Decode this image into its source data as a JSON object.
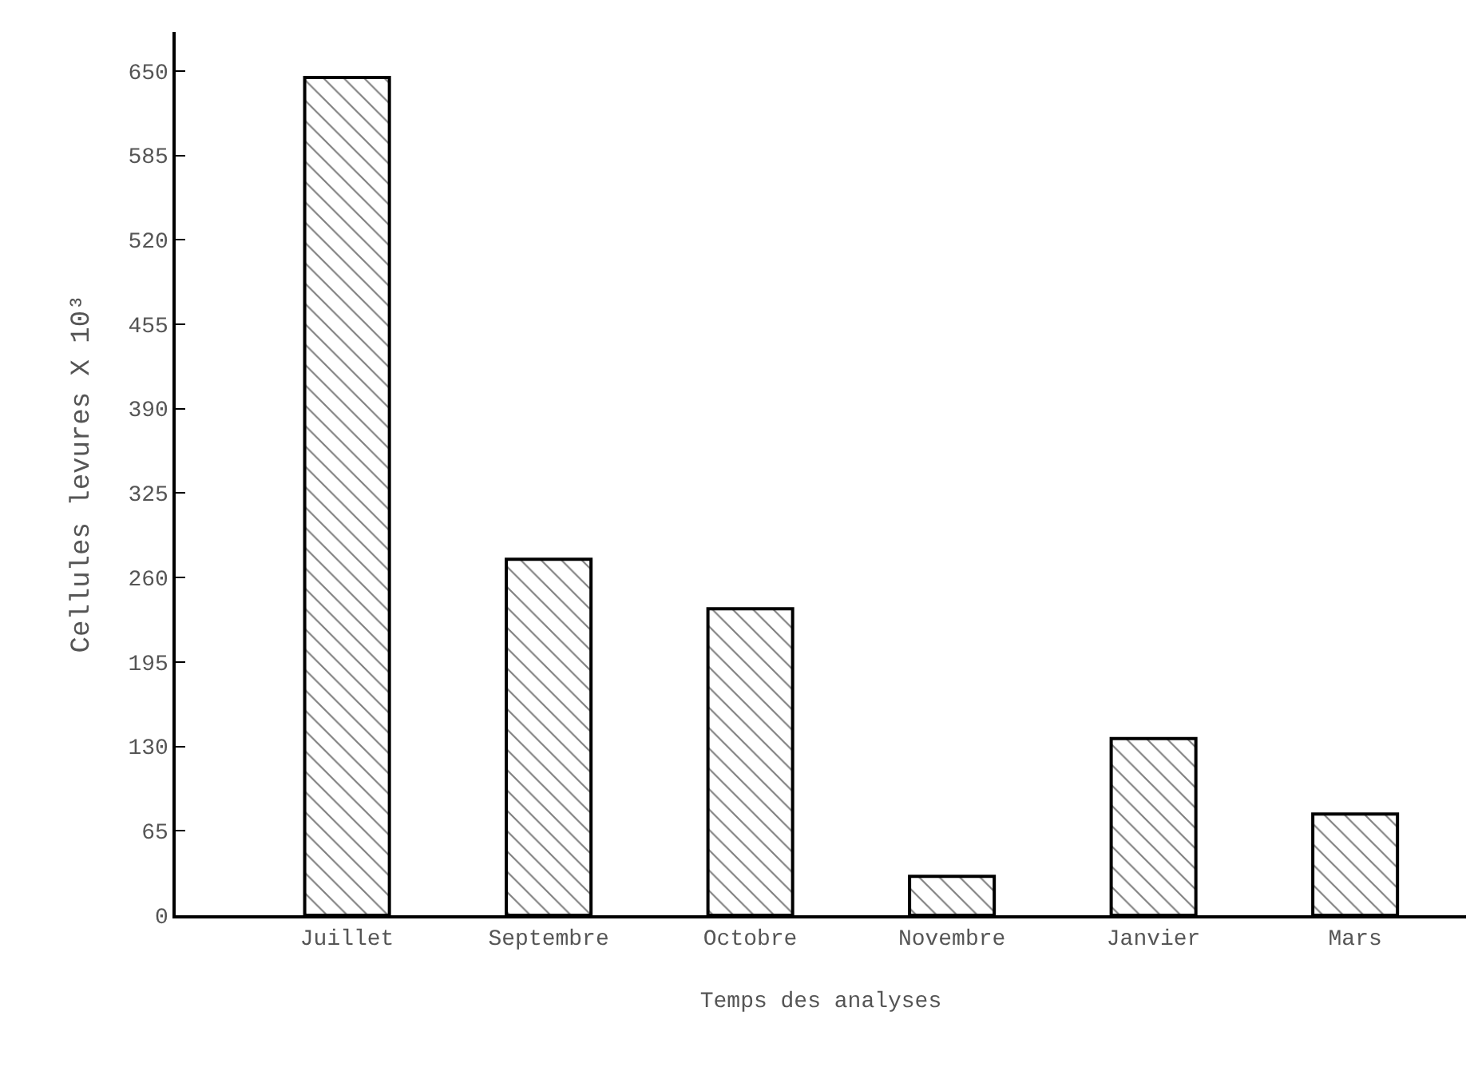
{
  "chart_data": {
    "type": "bar",
    "xlabel": "Temps des analyses",
    "ylabel": "Cellules levures X 10³",
    "categories": [
      "Juillet",
      "Septembre",
      "Octobre",
      "Novembre",
      "Janvier",
      "Mars"
    ],
    "values": [
      645,
      274,
      236,
      30,
      136,
      78
    ],
    "color": "#000000",
    "ylim": [
      0,
      680
    ],
    "yticks": [
      0,
      65,
      130,
      195,
      260,
      325,
      390,
      455,
      520,
      585,
      650
    ]
  }
}
